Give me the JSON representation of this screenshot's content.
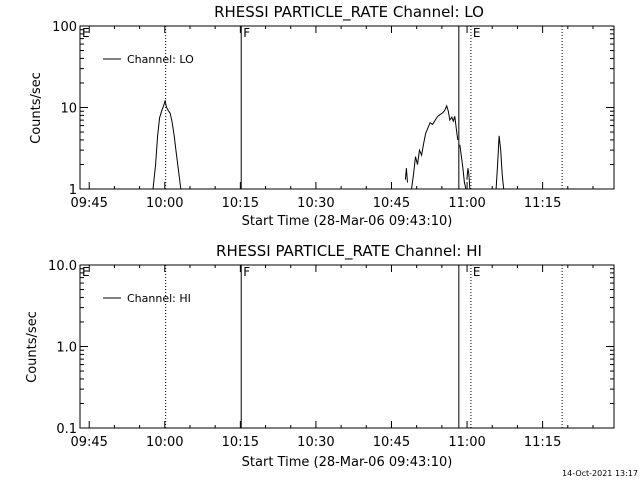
{
  "chart_data": [
    {
      "type": "line",
      "title": "RHESSI PARTICLE_RATE Channel: LO",
      "xlabel": "Start Time (28-Mar-06 09:43:10)",
      "ylabel": "Counts/sec",
      "yscale": "log",
      "ylim": [
        1,
        100
      ],
      "yticks": [
        "1",
        "10",
        "100"
      ],
      "yticks_values": [
        1,
        10,
        100
      ],
      "xlim_minutes": [
        0,
        106
      ],
      "xticks": [
        "09:45",
        "10:00",
        "10:15",
        "10:30",
        "10:45",
        "11:00",
        "11:15"
      ],
      "xticks_minutes": [
        1.83,
        16.83,
        31.83,
        46.83,
        61.83,
        76.83,
        91.83
      ],
      "grid": false,
      "legend": {
        "position": "top-left",
        "entries": [
          "Channel: LO"
        ]
      },
      "flags": [
        {
          "label": "E",
          "minute": 0,
          "line": "none"
        },
        {
          "label": "",
          "minute": 17.0,
          "line": "dotted"
        },
        {
          "label": "F",
          "minute": 32.0,
          "line": "solid"
        },
        {
          "label": "",
          "minute": 75.2,
          "line": "solid"
        },
        {
          "label": "E",
          "minute": 77.6,
          "line": "dotted"
        },
        {
          "label": "",
          "minute": 95.7,
          "line": "dotted"
        }
      ],
      "series": [
        {
          "name": "Channel: LO",
          "segments": [
            [
              [
                14.5,
                1.0
              ],
              [
                15.0,
                2.0
              ],
              [
                15.4,
                4.5
              ],
              [
                15.8,
                7.5
              ],
              [
                16.2,
                9.0
              ],
              [
                16.6,
                10.5
              ],
              [
                16.9,
                12.0
              ],
              [
                17.2,
                10.0
              ],
              [
                17.5,
                9.2
              ],
              [
                17.9,
                8.5
              ],
              [
                18.3,
                6.5
              ],
              [
                18.7,
                4.5
              ],
              [
                19.1,
                2.8
              ],
              [
                19.5,
                1.8
              ],
              [
                20.0,
                1.0
              ]
            ],
            [
              [
                64.6,
                1.3
              ],
              [
                64.8,
                1.8
              ],
              [
                65.0,
                1.2
              ]
            ],
            [
              [
                65.8,
                1.0
              ],
              [
                66.2,
                1.5
              ],
              [
                66.6,
                2.5
              ],
              [
                67.0,
                2.0
              ],
              [
                67.4,
                3.0
              ],
              [
                67.8,
                2.6
              ],
              [
                68.2,
                3.6
              ],
              [
                68.6,
                4.8
              ],
              [
                69.0,
                5.5
              ],
              [
                69.5,
                6.5
              ],
              [
                70.0,
                6.2
              ],
              [
                70.5,
                7.0
              ],
              [
                71.0,
                7.8
              ],
              [
                71.5,
                8.2
              ],
              [
                72.0,
                8.6
              ],
              [
                72.4,
                9.2
              ],
              [
                72.8,
                10.5
              ],
              [
                73.1,
                9.0
              ],
              [
                73.4,
                7.0
              ],
              [
                73.8,
                7.6
              ],
              [
                74.1,
                6.8
              ],
              [
                74.4,
                7.8
              ],
              [
                74.7,
                5.5
              ],
              [
                75.0,
                4.0
              ]
            ],
            [
              [
                75.4,
                3.5
              ],
              [
                75.7,
                2.5
              ],
              [
                76.0,
                1.8
              ],
              [
                76.3,
                1.2
              ],
              [
                76.6,
                1.0
              ]
            ],
            [
              [
                76.8,
                1.3
              ],
              [
                77.0,
                1.8
              ],
              [
                77.2,
                1.5
              ],
              [
                77.4,
                1.0
              ]
            ],
            [
              [
                82.6,
                1.0
              ],
              [
                82.9,
                2.0
              ],
              [
                83.2,
                4.5
              ],
              [
                83.5,
                3.0
              ],
              [
                83.8,
                1.5
              ],
              [
                84.1,
                1.0
              ]
            ]
          ]
        }
      ]
    },
    {
      "type": "line",
      "title": "RHESSI PARTICLE_RATE Channel: HI",
      "xlabel": "Start Time (28-Mar-06 09:43:10)",
      "ylabel": "Counts/sec",
      "yscale": "log",
      "ylim": [
        0.1,
        10.0
      ],
      "yticks": [
        "0.1",
        "1.0",
        "10.0"
      ],
      "yticks_values": [
        0.1,
        1.0,
        10.0
      ],
      "xlim_minutes": [
        0,
        106
      ],
      "xticks": [
        "09:45",
        "10:00",
        "10:15",
        "10:30",
        "10:45",
        "11:00",
        "11:15"
      ],
      "xticks_minutes": [
        1.83,
        16.83,
        31.83,
        46.83,
        61.83,
        76.83,
        91.83
      ],
      "grid": false,
      "legend": {
        "position": "top-left",
        "entries": [
          "Channel: HI"
        ]
      },
      "flags": [
        {
          "label": "E",
          "minute": 0,
          "line": "none"
        },
        {
          "label": "",
          "minute": 17.0,
          "line": "dotted"
        },
        {
          "label": "F",
          "minute": 32.0,
          "line": "solid"
        },
        {
          "label": "",
          "minute": 75.2,
          "line": "solid"
        },
        {
          "label": "E",
          "minute": 77.6,
          "line": "dotted"
        },
        {
          "label": "",
          "minute": 95.7,
          "line": "dotted"
        }
      ],
      "series": [
        {
          "name": "Channel: HI",
          "segments": []
        }
      ]
    }
  ],
  "footer": {
    "timestamp": "14-Oct-2021 13:17"
  }
}
